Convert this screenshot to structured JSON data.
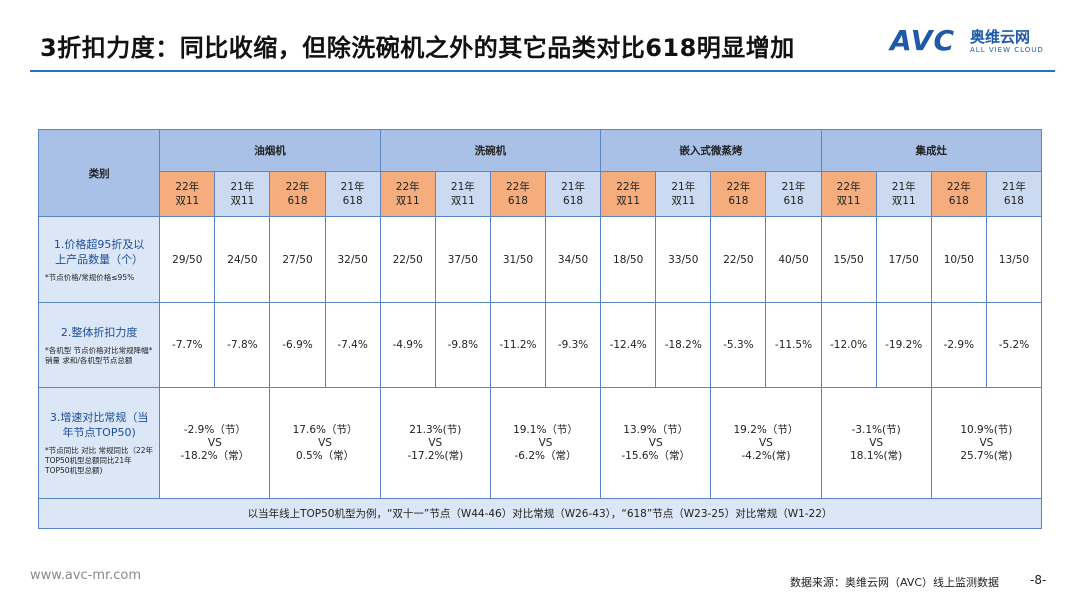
{
  "title": "3折扣力度：同比收缩，但除洗碗机之外的其它品类对比618明显增加",
  "logo": {
    "mark": "AVC",
    "cn": "奥维云网",
    "en": "ALL VIEW CLOUD"
  },
  "table": {
    "corner": "类别",
    "categories": [
      "油烟机",
      "洗碗机",
      "嵌入式微蒸烤",
      "集成灶"
    ],
    "years": [
      "22年\n双11",
      "21年\n双11",
      "22年\n618",
      "21年\n618"
    ],
    "rows": [
      {
        "label": "1.价格超95折及以上产品数量（个）",
        "note": "*节点价格/常规价格≤95%",
        "values": [
          "29/50",
          "24/50",
          "27/50",
          "32/50",
          "22/50",
          "37/50",
          "31/50",
          "34/50",
          "18/50",
          "33/50",
          "22/50",
          "40/50",
          "15/50",
          "17/50",
          "10/50",
          "13/50"
        ]
      },
      {
        "label": "2.整体折扣力度",
        "note": "*各机型 节点价格对比常规降幅*销量 求和/各机型节点总额",
        "values": [
          "-7.7%",
          "-7.8%",
          "-6.9%",
          "-7.4%",
          "-4.9%",
          "-9.8%",
          "-11.2%",
          "-9.3%",
          "-12.4%",
          "-18.2%",
          "-5.3%",
          "-11.5%",
          "-12.0%",
          "-19.2%",
          "-2.9%",
          "-5.2%"
        ]
      },
      {
        "label": "3.增速对比常规（当年节点TOP50)",
        "note": "*节点同比 对比 常规同比（22年TOP50机型总额同比21年TOP50机型总额)",
        "values": [
          "-2.9%（节）\nVS\n-18.2%（常）",
          "17.6%（节）\nVS\n0.5%（常）",
          "21.3%(节)\nVS\n-17.2%(常)",
          "19.1%（节）\nVS\n-6.2%（常）",
          "13.9%（节）\nVS\n-15.6%（常）",
          "19.2%（节）\nVS\n-4.2%(常)",
          "-3.1%(节)\nVS\n18.1%(常)",
          "10.9%(节)\nVS\n25.7%(常)"
        ]
      }
    ],
    "footnote": "以当年线上TOP50机型为例，“双十一”节点（W44-46）对比常规（W26-43），“618”节点（W23-25）对比常规（W1-22）"
  },
  "footer": {
    "site": "www.avc-mr.com",
    "source": "数据来源：奥维云网（AVC）线上监测数据",
    "page": "-8-"
  },
  "colors": {
    "accent": "#2e6fbd",
    "header": "#a9c1e7",
    "label_bg": "#dbe6f6",
    "peach": "#f5ad7d",
    "year_blue": "#cbdaf1"
  }
}
